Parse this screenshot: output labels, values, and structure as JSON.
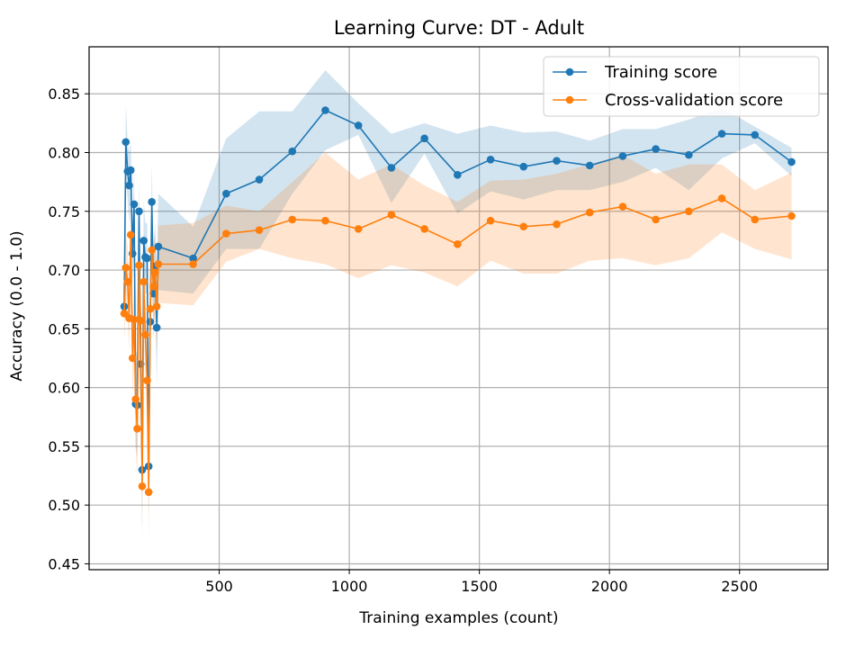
{
  "chart_data": {
    "type": "line",
    "title": "Learning Curve: DT - Adult",
    "xlabel": "Training examples (count)",
    "ylabel": "Accuracy (0.0 - 1.0)",
    "xlim": [
      0,
      2840
    ],
    "ylim": [
      0.445,
      0.89
    ],
    "xticks": [
      500,
      1000,
      1500,
      2000,
      2500
    ],
    "yticks": [
      0.45,
      0.5,
      0.55,
      0.6,
      0.65,
      0.7,
      0.75,
      0.8,
      0.85
    ],
    "grid": true,
    "legend_position": "top-right",
    "colors": {
      "training": "#1f77b4",
      "cv": "#ff7f0e"
    },
    "series": [
      {
        "name": "Training score",
        "color": "#1f77b4",
        "x": [
          135,
          141,
          148,
          154,
          160,
          167,
          173,
          179,
          185,
          192,
          198,
          204,
          210,
          216,
          223,
          229,
          235,
          241,
          247,
          254,
          260,
          266,
          400,
          527,
          654,
          781,
          908,
          1035,
          1162,
          1289,
          1416,
          1543,
          1670,
          1797,
          1924,
          2051,
          2178,
          2305,
          2432,
          2559,
          2700
        ],
        "y": [
          0.669,
          0.809,
          0.784,
          0.772,
          0.785,
          0.714,
          0.756,
          0.586,
          0.585,
          0.75,
          0.62,
          0.53,
          0.725,
          0.711,
          0.71,
          0.533,
          0.656,
          0.758,
          0.68,
          0.703,
          0.651,
          0.72,
          0.71,
          0.765,
          0.777,
          0.801,
          0.836,
          0.823,
          0.787,
          0.812,
          0.781,
          0.794,
          0.788,
          0.793,
          0.789,
          0.797,
          0.803,
          0.798,
          0.816,
          0.815,
          0.792
        ],
        "std_band_upper": [
          0.69,
          0.84,
          0.81,
          0.8,
          0.81,
          0.74,
          0.79,
          0.63,
          0.63,
          0.78,
          0.67,
          0.58,
          0.76,
          0.74,
          0.74,
          0.58,
          0.69,
          0.79,
          0.72,
          0.74,
          0.7,
          0.765,
          0.737,
          0.812,
          0.835,
          0.835,
          0.87,
          0.842,
          0.816,
          0.825,
          0.816,
          0.823,
          0.817,
          0.818,
          0.81,
          0.82,
          0.82,
          0.828,
          0.838,
          0.822,
          0.804
        ],
        "std_band_lower": [
          0.65,
          0.78,
          0.76,
          0.74,
          0.76,
          0.69,
          0.72,
          0.55,
          0.54,
          0.72,
          0.57,
          0.48,
          0.69,
          0.68,
          0.68,
          0.49,
          0.62,
          0.73,
          0.64,
          0.67,
          0.6,
          0.683,
          0.68,
          0.718,
          0.718,
          0.765,
          0.802,
          0.815,
          0.757,
          0.799,
          0.748,
          0.767,
          0.76,
          0.768,
          0.768,
          0.775,
          0.787,
          0.768,
          0.795,
          0.808,
          0.78
        ]
      },
      {
        "name": "Cross-validation score",
        "color": "#ff7f0e",
        "x": [
          135,
          141,
          148,
          154,
          160,
          167,
          173,
          179,
          185,
          192,
          198,
          204,
          210,
          216,
          223,
          229,
          235,
          241,
          247,
          254,
          260,
          266,
          400,
          527,
          654,
          781,
          908,
          1035,
          1162,
          1289,
          1416,
          1543,
          1670,
          1797,
          1924,
          2051,
          2178,
          2305,
          2432,
          2559,
          2700
        ],
        "y": [
          0.663,
          0.702,
          0.69,
          0.659,
          0.73,
          0.625,
          0.658,
          0.59,
          0.565,
          0.704,
          0.657,
          0.516,
          0.69,
          0.645,
          0.606,
          0.511,
          0.667,
          0.717,
          0.686,
          0.698,
          0.669,
          0.705,
          0.705,
          0.731,
          0.734,
          0.743,
          0.742,
          0.735,
          0.747,
          0.735,
          0.722,
          0.742,
          0.737,
          0.739,
          0.749,
          0.754,
          0.743,
          0.75,
          0.761,
          0.743,
          0.746
        ],
        "std_band_upper": [
          0.69,
          0.73,
          0.72,
          0.69,
          0.76,
          0.66,
          0.69,
          0.63,
          0.61,
          0.74,
          0.7,
          0.56,
          0.72,
          0.68,
          0.64,
          0.55,
          0.7,
          0.75,
          0.72,
          0.73,
          0.7,
          0.738,
          0.74,
          0.755,
          0.75,
          0.775,
          0.8,
          0.777,
          0.79,
          0.772,
          0.758,
          0.776,
          0.777,
          0.782,
          0.79,
          0.798,
          0.782,
          0.79,
          0.79,
          0.768,
          0.783
        ],
        "std_band_lower": [
          0.64,
          0.67,
          0.66,
          0.63,
          0.7,
          0.59,
          0.62,
          0.55,
          0.52,
          0.67,
          0.61,
          0.47,
          0.66,
          0.61,
          0.57,
          0.47,
          0.63,
          0.68,
          0.65,
          0.66,
          0.63,
          0.672,
          0.67,
          0.707,
          0.718,
          0.71,
          0.705,
          0.693,
          0.704,
          0.698,
          0.686,
          0.708,
          0.697,
          0.697,
          0.708,
          0.71,
          0.704,
          0.71,
          0.732,
          0.718,
          0.709
        ]
      }
    ]
  }
}
